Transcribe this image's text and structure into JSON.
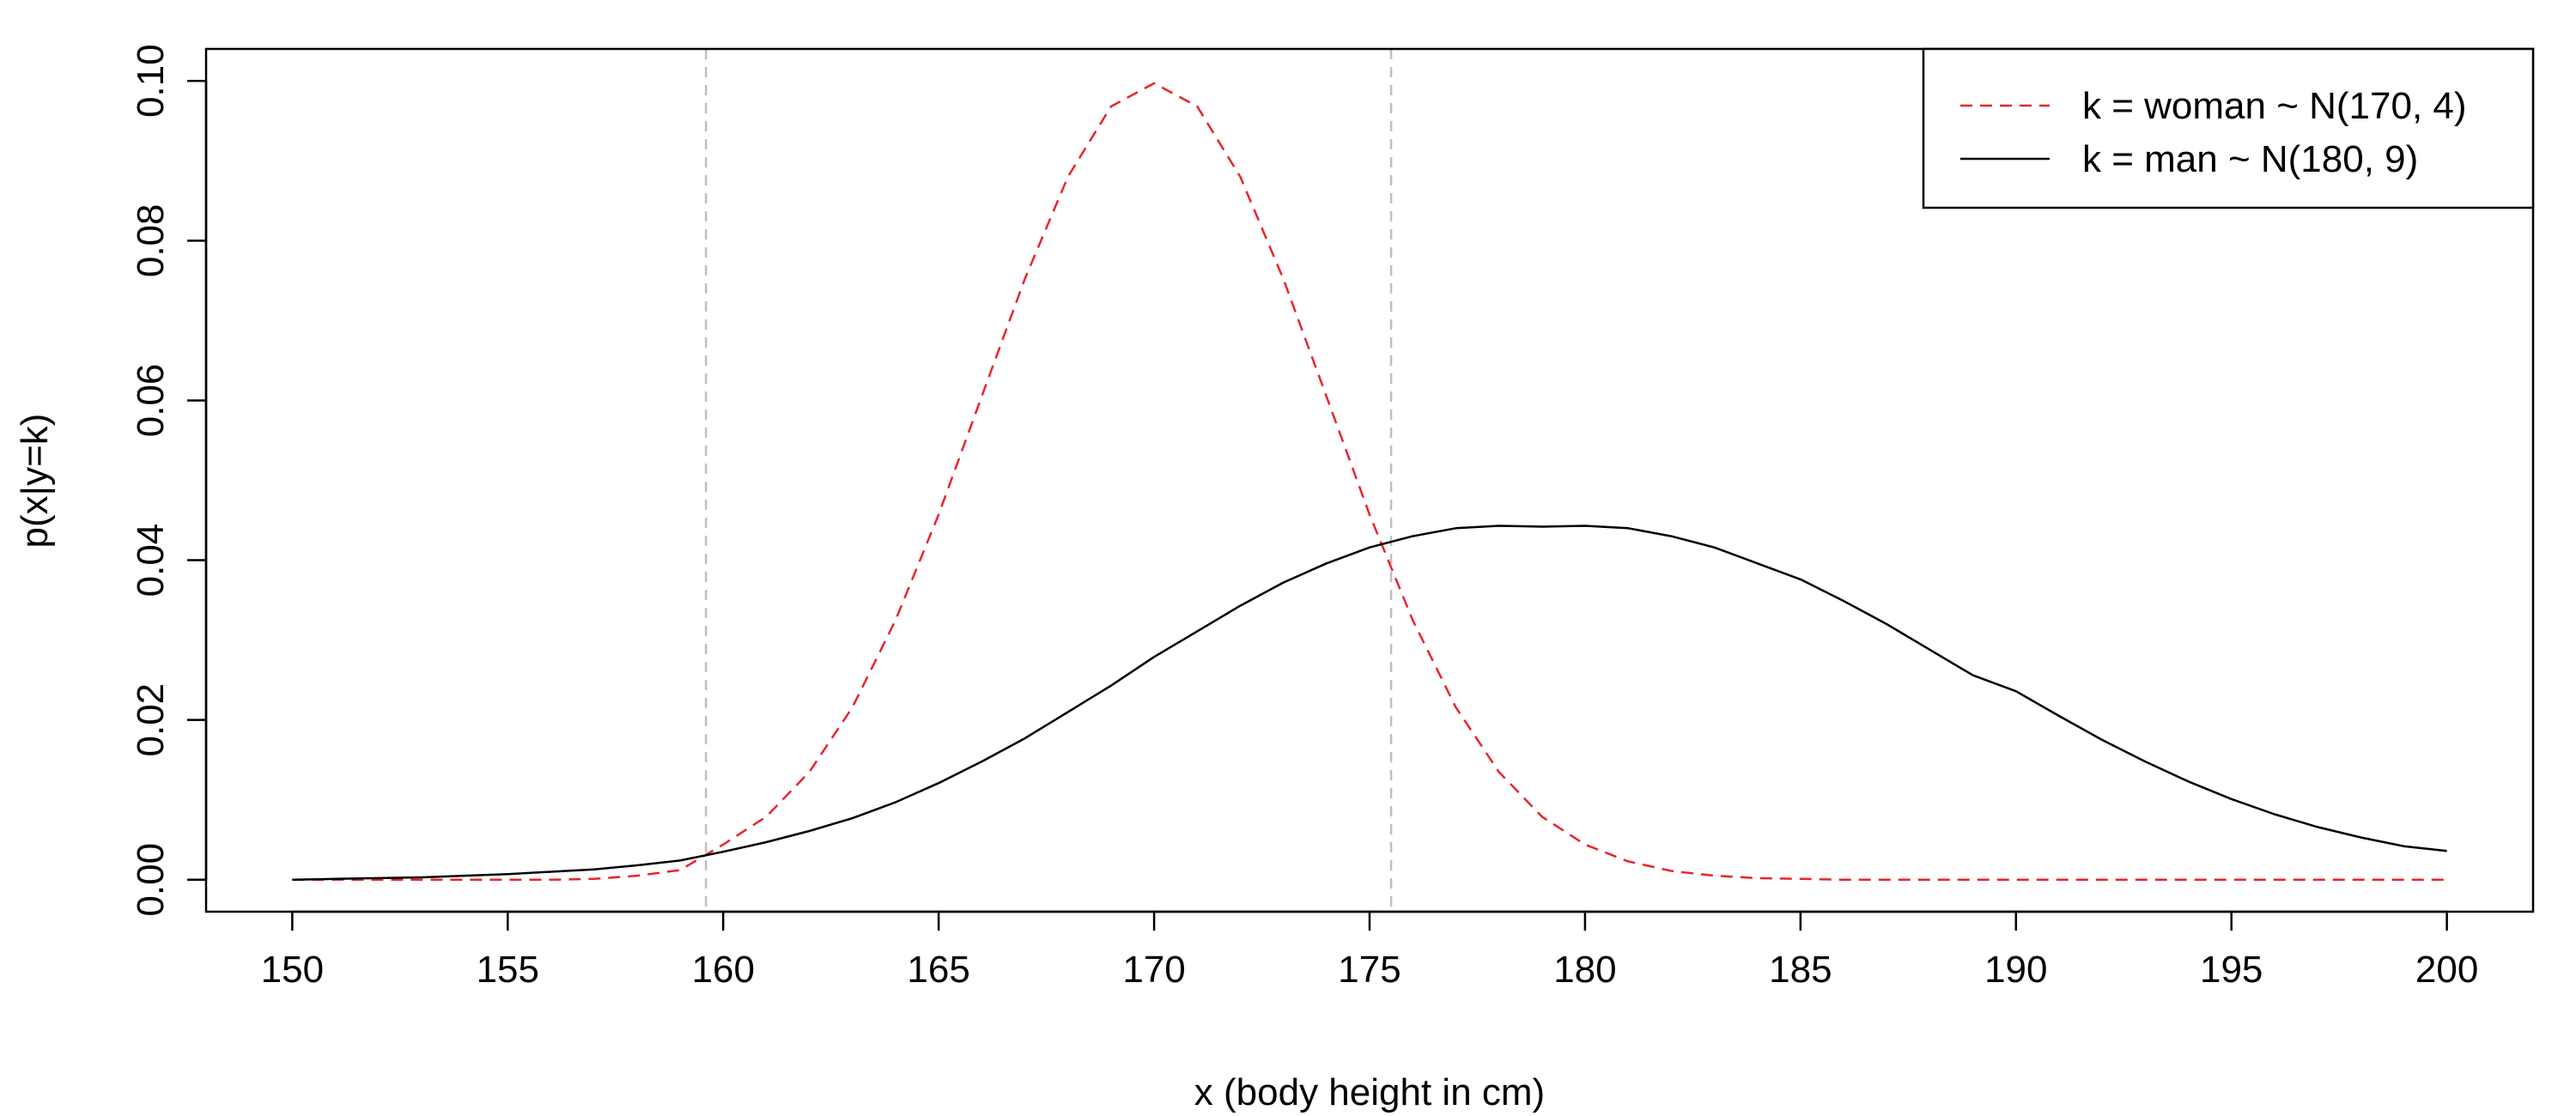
{
  "chart_data": {
    "type": "line",
    "title": "",
    "xlabel": "x (body height in cm)",
    "ylabel": "p(x|y=k)",
    "xlim": [
      148,
      202
    ],
    "ylim": [
      -0.004,
      0.104
    ],
    "x_ticks": [
      150,
      155,
      160,
      165,
      170,
      175,
      180,
      185,
      190,
      195,
      200
    ],
    "x_tick_labels": [
      "150",
      "155",
      "160",
      "165",
      "170",
      "175",
      "180",
      "185",
      "190",
      "195",
      "200"
    ],
    "y_ticks": [
      0.0,
      0.02,
      0.04,
      0.06,
      0.08,
      0.1
    ],
    "y_tick_labels": [
      "0.00",
      "0.02",
      "0.04",
      "0.06",
      "0.08",
      "0.10"
    ],
    "grid": false,
    "legend_position": "top-right",
    "x": [
      150,
      151,
      152,
      153,
      154,
      155,
      156,
      157,
      158,
      159,
      160,
      161,
      162,
      163,
      164,
      165,
      166,
      167,
      168,
      169,
      170,
      171,
      172,
      173,
      174,
      175,
      176,
      177,
      178,
      179,
      180,
      181,
      182,
      183,
      184,
      185,
      186,
      187,
      188,
      189,
      190,
      191,
      192,
      193,
      194,
      195,
      196,
      197,
      198,
      199,
      200
    ],
    "series": [
      {
        "name": "k = woman ~ N(170, 4)",
        "color": "#e8242b",
        "line_style": "dashed",
        "values": [
          0.0,
          0.0,
          0.0,
          0.0,
          0.0,
          0.0,
          0.0,
          0.0001,
          0.0005,
          0.0012,
          0.0044,
          0.0079,
          0.0135,
          0.0216,
          0.0325,
          0.0457,
          0.0605,
          0.0752,
          0.088,
          0.0968,
          0.0997,
          0.0968,
          0.088,
          0.0752,
          0.0605,
          0.0457,
          0.0325,
          0.0216,
          0.0135,
          0.0079,
          0.0044,
          0.0023,
          0.0011,
          0.0005,
          0.0002,
          0.0001,
          0.0,
          0.0,
          0.0,
          0.0,
          0.0,
          0.0,
          0.0,
          0.0,
          0.0,
          0.0,
          0.0,
          0.0,
          0.0,
          0.0,
          0.0
        ]
      },
      {
        "name": "k = man ~ N(180, 9)",
        "color": "#000000",
        "line_style": "solid",
        "values": [
          0.0,
          0.0001,
          0.0002,
          0.0003,
          0.0005,
          0.0007,
          0.001,
          0.0013,
          0.0018,
          0.0024,
          0.0035,
          0.0047,
          0.0061,
          0.0077,
          0.0097,
          0.0121,
          0.0148,
          0.0177,
          0.021,
          0.0243,
          0.0279,
          0.0311,
          0.0343,
          0.0372,
          0.0396,
          0.0416,
          0.043,
          0.044,
          0.0443,
          0.0442,
          0.0443,
          0.044,
          0.043,
          0.0416,
          0.0396,
          0.0376,
          0.0349,
          0.032,
          0.0288,
          0.0256,
          0.0236,
          0.0205,
          0.0175,
          0.0148,
          0.0123,
          0.0101,
          0.0082,
          0.0066,
          0.0053,
          0.0042,
          0.0036
        ]
      }
    ],
    "vertical_reference_lines": [
      {
        "x": 159.6,
        "color": "#bfbfbf",
        "line_style": "dashed"
      },
      {
        "x": 175.5,
        "color": "#bfbfbf",
        "line_style": "dashed"
      }
    ]
  }
}
